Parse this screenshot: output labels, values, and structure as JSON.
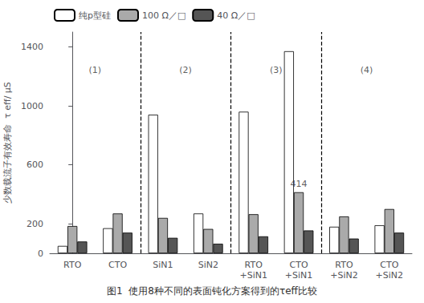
{
  "chart_data": {
    "type": "bar",
    "caption": "图1  使用8种不同的表面钝化方案得到的τeff比较",
    "ylabel": "少数载流子有效寿命  τ eff/ μS",
    "categories": [
      "RTO",
      "CTO",
      "SiN1",
      "SiN2",
      "RTO\n+SiN1",
      "CTO\n+SiN1",
      "RTO\n+SiN2",
      "CTO\n+SiN2"
    ],
    "series": [
      {
        "name": "纯p型硅",
        "color": "#ffffff",
        "values": [
          50,
          170,
          940,
          270,
          960,
          1370,
          180,
          190
        ]
      },
      {
        "name": "100 Ω／□",
        "color": "#aaaaaa",
        "values": [
          185,
          270,
          240,
          165,
          265,
          414,
          250,
          300
        ]
      },
      {
        "name": "40 Ω／□",
        "color": "#555555",
        "values": [
          80,
          140,
          105,
          65,
          115,
          155,
          100,
          140
        ]
      }
    ],
    "ylim": [
      0,
      1500
    ],
    "yticks": [
      0,
      200,
      600,
      1000,
      1400
    ],
    "annotations": [
      {
        "text": "(1)",
        "x": 0.5,
        "y": 1200
      },
      {
        "text": "(2)",
        "x": 2.5,
        "y": 1200
      },
      {
        "text": "(3)",
        "x": 4.5,
        "y": 1200
      },
      {
        "text": "(4)",
        "x": 6.5,
        "y": 1200
      },
      {
        "text": "414",
        "x": 5,
        "y": 430
      }
    ],
    "dividers": [
      1.5,
      3.5,
      5.5
    ],
    "legend": "upper left",
    "grid": false
  }
}
